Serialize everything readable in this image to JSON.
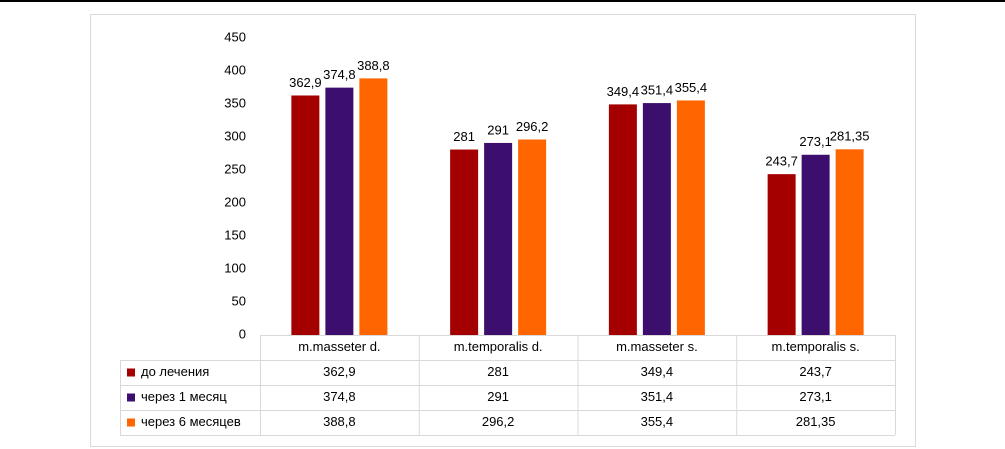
{
  "chart_data": {
    "type": "bar",
    "categories": [
      "m.masseter d.",
      "m.temporalis d.",
      "m.masseter s.",
      "m.temporalis s."
    ],
    "series": [
      {
        "name": "до лечения",
        "color": "#a50000",
        "values": [
          362.9,
          281,
          349.4,
          243.7
        ],
        "value_labels": [
          "362,9",
          "281",
          "349,4",
          "243,7"
        ]
      },
      {
        "name": "через 1 месяц",
        "color": "#3c0f6e",
        "values": [
          374.8,
          291,
          351.4,
          273.1
        ],
        "value_labels": [
          "374,8",
          "291",
          "351,4",
          "273,1"
        ]
      },
      {
        "name": "через 6 месяцев",
        "color": "#ff6600",
        "values": [
          388.8,
          296.2,
          355.4,
          281.35
        ],
        "value_labels": [
          "388,8",
          "296,2",
          "355,4",
          "281,35"
        ]
      }
    ],
    "ylim": [
      0,
      450
    ],
    "yticks": [
      0,
      50,
      100,
      150,
      200,
      250,
      300,
      350,
      400,
      450
    ],
    "grid": false
  }
}
